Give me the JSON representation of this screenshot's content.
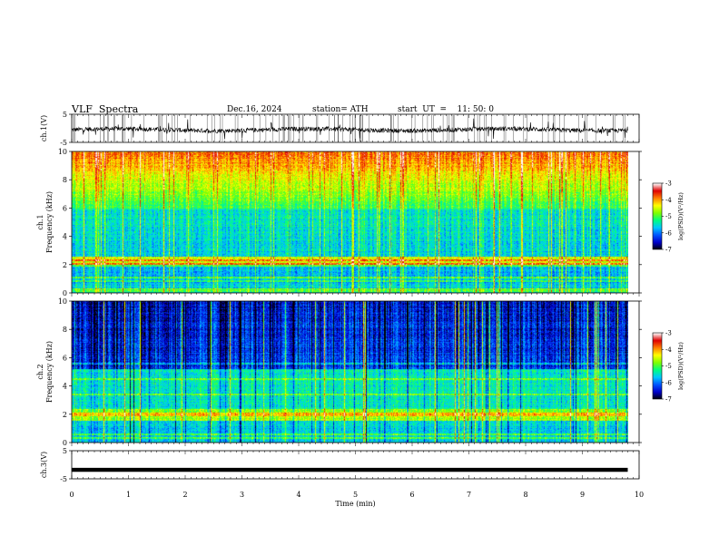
{
  "header": {
    "title": "VLF  Spectra",
    "date": "Dec.16, 2024",
    "station": "station= ATH",
    "start": "start  UT  =    11: 50: 0"
  },
  "chart_data": [
    {
      "type": "line",
      "name": "ch1-waveform",
      "ylabel": "ch.1(V)",
      "ylim": [
        -5,
        5
      ],
      "yticks": [
        "5",
        "-5"
      ],
      "xlim": [
        0,
        10
      ],
      "baseline": -0.5,
      "duration_min": 9.8
    },
    {
      "type": "heatmap",
      "name": "ch1-spectrogram",
      "ylabel": "ch.1\nFrequency (kHz)",
      "ylabel_lines": [
        "ch.1",
        "Frequency (kHz)"
      ],
      "ylim": [
        0,
        10
      ],
      "yticks": [
        "0",
        "2",
        "4",
        "6",
        "8",
        "10"
      ],
      "xlim": [
        0,
        10
      ],
      "duration_min": 9.8,
      "colorbar": {
        "label": "log(PSD)(V²/Hz)",
        "range": [
          -7,
          -3
        ],
        "ticks": [
          "-3",
          "-4",
          "-5",
          "-6",
          "-7"
        ]
      }
    },
    {
      "type": "heatmap",
      "name": "ch2-spectrogram",
      "ylabel": "ch.2\nFrequency (kHz)",
      "ylabel_lines": [
        "ch.2",
        "Frequency (kHz)"
      ],
      "ylim": [
        0,
        10
      ],
      "yticks": [
        "0",
        "2",
        "4",
        "6",
        "8",
        "10"
      ],
      "xlim": [
        0,
        10
      ],
      "duration_min": 9.8,
      "colorbar": {
        "label": "log(PSD)(V²/Hz)",
        "range": [
          -7,
          -3
        ],
        "ticks": [
          "-3",
          "-4",
          "-5",
          "-6",
          "-7"
        ]
      }
    },
    {
      "type": "line",
      "name": "ch3-waveform",
      "ylabel": "ch.3(V)",
      "ylim": [
        -5,
        5
      ],
      "yticks": [
        "5",
        "-5"
      ],
      "xlim": [
        0,
        10
      ],
      "baseline": -1.8,
      "duration_min": 9.8,
      "xlabel": "Time  (min)",
      "xticks": [
        "0",
        "1",
        "2",
        "3",
        "4",
        "5",
        "6",
        "7",
        "8",
        "9",
        "10"
      ]
    }
  ],
  "colors": {
    "scale": [
      "#000000",
      "#0000cc",
      "#0055ff",
      "#00c8ff",
      "#00ff80",
      "#80ff00",
      "#ffff00",
      "#ff8000",
      "#e00000",
      "#ffffff"
    ]
  }
}
